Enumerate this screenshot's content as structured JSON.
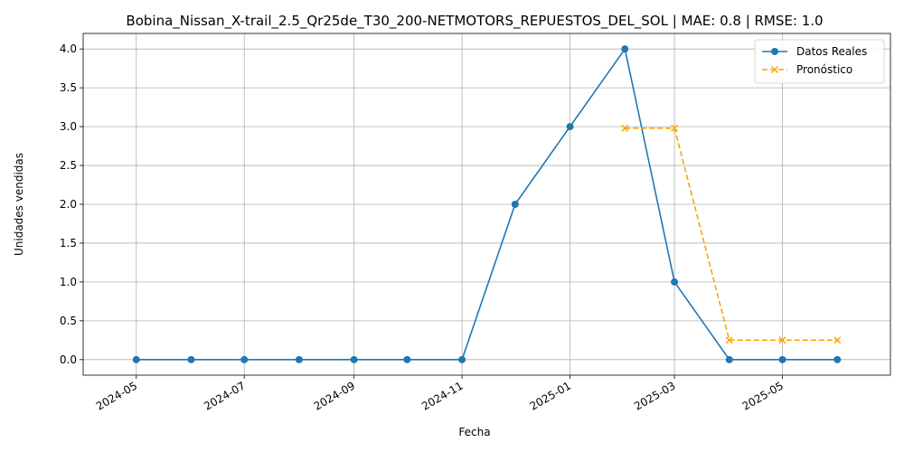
{
  "chart_data": {
    "type": "line",
    "title": "Bobina_Nissan_X-trail_2.5_Qr25de_T30_200-NETMOTORS_REPUESTOS_DEL_SOL | MAE: 0.8 | RMSE: 1.0",
    "xlabel": "Fecha",
    "ylabel": "Unidades vendidas",
    "xlim": [
      "2024-04-01",
      "2025-07-01"
    ],
    "ylim": [
      -0.2,
      4.2
    ],
    "x_ticks": [
      "2024-05",
      "2024-07",
      "2024-09",
      "2024-11",
      "2025-01",
      "2025-03",
      "2025-05"
    ],
    "y_ticks": [
      "0.0",
      "0.5",
      "1.0",
      "1.5",
      "2.0",
      "2.5",
      "3.0",
      "3.5",
      "4.0"
    ],
    "grid": true,
    "legend_position": "top-right",
    "series": [
      {
        "name": "Datos Reales",
        "color": "#1f77b4",
        "marker": "circle",
        "line_style": "solid",
        "x": [
          "2024-05-01",
          "2024-06-01",
          "2024-07-01",
          "2024-08-01",
          "2024-09-01",
          "2024-10-01",
          "2024-11-01",
          "2024-12-01",
          "2025-01-01",
          "2025-02-01",
          "2025-03-01",
          "2025-04-01",
          "2025-05-01",
          "2025-06-01"
        ],
        "values": [
          0,
          0,
          0,
          0,
          0,
          0,
          0,
          2,
          3,
          4,
          1,
          0,
          0,
          0
        ]
      },
      {
        "name": "Pronóstico",
        "color": "#ffa500",
        "marker": "x",
        "line_style": "dashed",
        "x": [
          "2025-02-01",
          "2025-03-01",
          "2025-04-01",
          "2025-05-01",
          "2025-06-01"
        ],
        "values": [
          2.98,
          2.98,
          0.25,
          0.25,
          0.25
        ]
      }
    ]
  }
}
